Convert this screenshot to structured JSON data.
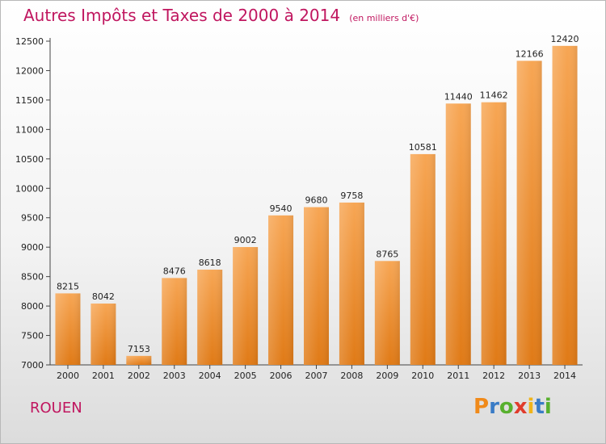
{
  "chart_data": {
    "type": "bar",
    "title": "Autres Impôts et Taxes de 2000 à 2014",
    "unit_note": "(en milliers d'€)",
    "categories": [
      "2000",
      "2001",
      "2002",
      "2003",
      "2004",
      "2005",
      "2006",
      "2007",
      "2008",
      "2009",
      "2010",
      "2011",
      "2012",
      "2013",
      "2014"
    ],
    "values": [
      8215,
      8042,
      7153,
      8476,
      8618,
      9002,
      9540,
      9680,
      9758,
      8765,
      10581,
      11440,
      11462,
      12166,
      12420
    ],
    "ylim": [
      7000,
      12500
    ],
    "yticks": [
      7000,
      7500,
      8000,
      8500,
      9000,
      9500,
      10000,
      10500,
      11000,
      11500,
      12000,
      12500
    ],
    "grid": false,
    "bar_color": "#f0902e"
  },
  "footer": {
    "city": "ROUEN",
    "logo_letters": [
      "P",
      "r",
      "o",
      "x",
      "i",
      "t",
      "i"
    ],
    "logo_colors": [
      "#f08a1a",
      "#3a7cc6",
      "#58b02e",
      "#e03c2c",
      "#f0b41a",
      "#3a7cc6",
      "#58b02e"
    ]
  }
}
